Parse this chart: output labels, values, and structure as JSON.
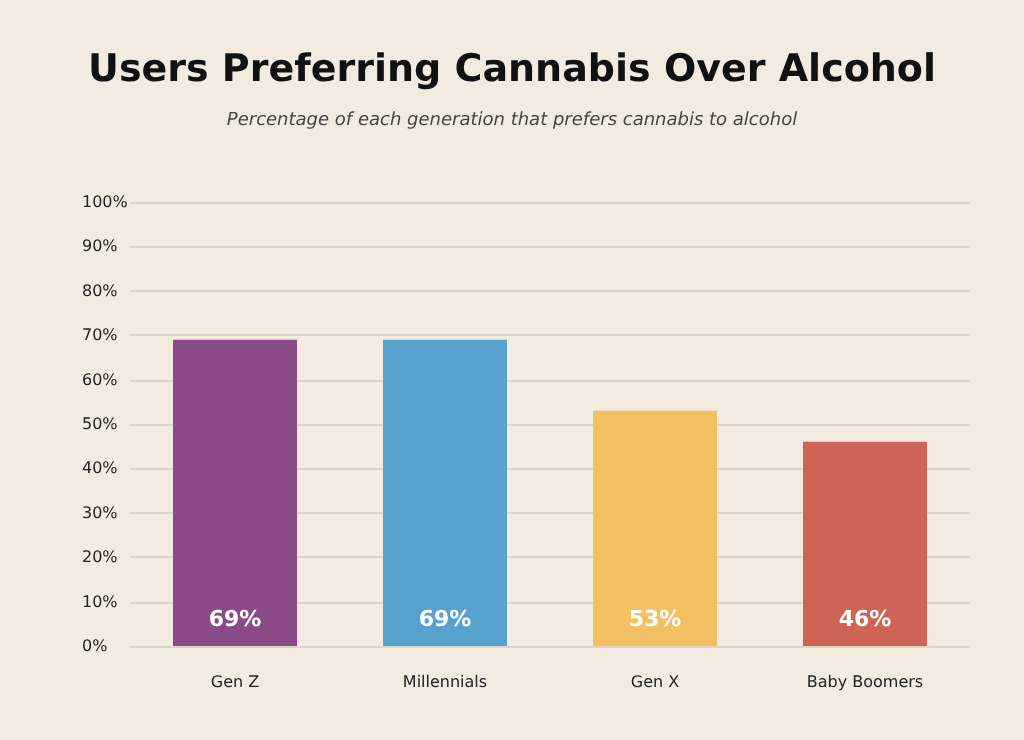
{
  "chart_data": {
    "type": "bar",
    "title": "Users Preferring Cannabis Over Alcohol",
    "subtitle": "Percentage of each generation that prefers cannabis to alcohol",
    "categories": [
      "Gen Z",
      "Millennials",
      "Gen X",
      "Baby Boomers"
    ],
    "values": [
      69,
      69,
      53,
      46
    ],
    "colors": [
      "#8a4a86",
      "#56a1cd",
      "#f1c062",
      "#cd6456"
    ],
    "value_labels": [
      "69%",
      "69%",
      "53%",
      "46%"
    ],
    "ylim": [
      0,
      100
    ],
    "yticks": [
      {
        "value": 0,
        "label": "0%"
      },
      {
        "value": 10,
        "label": "10%"
      },
      {
        "value": 20,
        "label": "20%"
      },
      {
        "value": 30,
        "label": "30%"
      },
      {
        "value": 40,
        "label": "40%"
      },
      {
        "value": 50,
        "label": "50%"
      },
      {
        "value": 60,
        "label": "60%"
      },
      {
        "value": 70,
        "label": "70%"
      },
      {
        "value": 80,
        "label": "80%"
      },
      {
        "value": 90,
        "label": "90%"
      },
      {
        "value": 100,
        "label": "100%"
      }
    ],
    "grid": "y"
  }
}
